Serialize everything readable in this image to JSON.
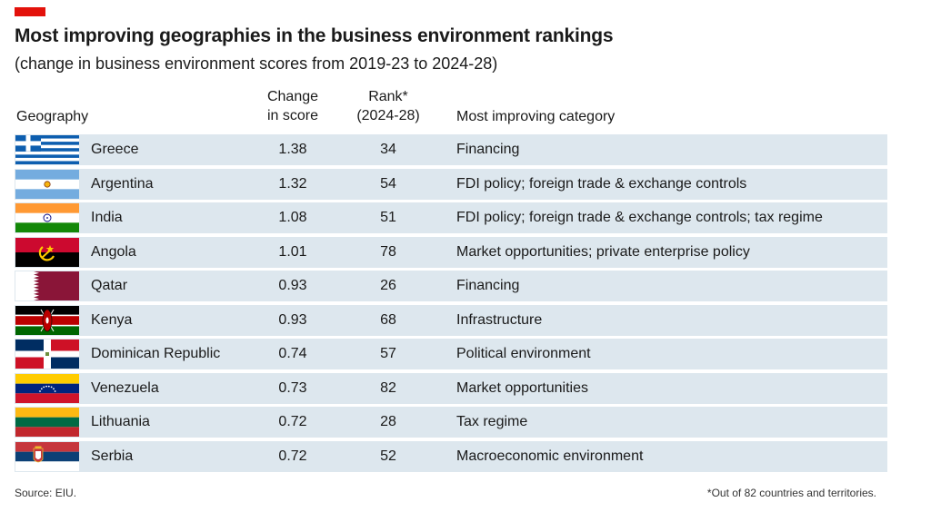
{
  "colors": {
    "accent": "#e3120b",
    "row_background": "#dde7ee"
  },
  "chart_data": {
    "type": "table",
    "title": "Most improving geographies in the business environment rankings",
    "subtitle": "(change in business environment scores from 2019-23 to 2024-28)",
    "columns": {
      "geography": "Geography",
      "change_line1": "Change",
      "change_line2": "in score",
      "rank_line1": "Rank*",
      "rank_line2": "(2024-28)",
      "category": "Most improving category"
    },
    "rows": [
      {
        "flag": "greece-flag-icon",
        "geography": "Greece",
        "change": "1.38",
        "rank": "34",
        "category": "Financing"
      },
      {
        "flag": "argentina-flag-icon",
        "geography": "Argentina",
        "change": "1.32",
        "rank": "54",
        "category": "FDI policy; foreign trade & exchange controls"
      },
      {
        "flag": "india-flag-icon",
        "geography": "India",
        "change": "1.08",
        "rank": "51",
        "category": "FDI policy; foreign trade & exchange controls; tax regime"
      },
      {
        "flag": "angola-flag-icon",
        "geography": "Angola",
        "change": "1.01",
        "rank": "78",
        "category": "Market opportunities; private enterprise policy"
      },
      {
        "flag": "qatar-flag-icon",
        "geography": "Qatar",
        "change": "0.93",
        "rank": "26",
        "category": "Financing"
      },
      {
        "flag": "kenya-flag-icon",
        "geography": "Kenya",
        "change": "0.93",
        "rank": "68",
        "category": "Infrastructure"
      },
      {
        "flag": "dominican-republic-flag-icon",
        "geography": "Dominican Republic",
        "change": "0.74",
        "rank": "57",
        "category": "Political environment"
      },
      {
        "flag": "venezuela-flag-icon",
        "geography": "Venezuela",
        "change": "0.73",
        "rank": "82",
        "category": "Market opportunities"
      },
      {
        "flag": "lithuania-flag-icon",
        "geography": "Lithuania",
        "change": "0.72",
        "rank": "28",
        "category": "Tax regime"
      },
      {
        "flag": "serbia-flag-icon",
        "geography": "Serbia",
        "change": "0.72",
        "rank": "52",
        "category": "Macroeconomic environment"
      }
    ],
    "source": "Source: EIU.",
    "footnote": "*Out of 82 countries and territories."
  }
}
